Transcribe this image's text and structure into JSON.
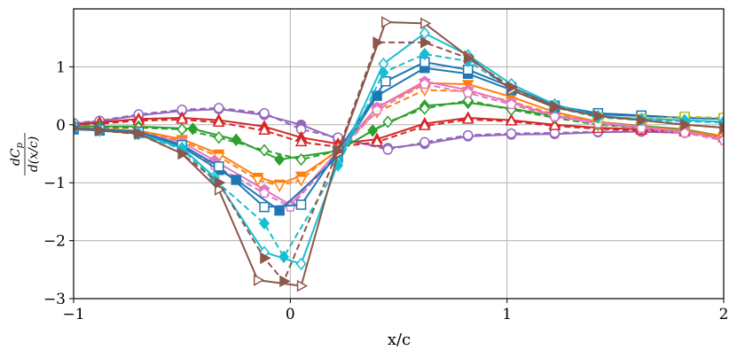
{
  "chart_data": {
    "type": "line",
    "xlabel": "x/c",
    "ylabel": {
      "numerator": "dC",
      "numerator_sub": "p",
      "denominator": "d(x/c)"
    },
    "xlim": [
      -1,
      2
    ],
    "ylim": [
      -3,
      2
    ],
    "xticks": [
      {
        "value": -1,
        "label": "−1"
      },
      {
        "value": 0,
        "label": "0"
      },
      {
        "value": 1,
        "label": "1"
      },
      {
        "value": 2,
        "label": "2"
      }
    ],
    "yticks": [
      {
        "value": -3,
        "label": "−3"
      },
      {
        "value": -2,
        "label": "−2"
      },
      {
        "value": -1,
        "label": "−1"
      },
      {
        "value": 0,
        "label": "0"
      },
      {
        "value": 1,
        "label": "1"
      }
    ],
    "grid": true,
    "series": [
      {
        "color": "#9467bd",
        "dash": false,
        "marker": "circle-filled",
        "x": [
          -1.0,
          -0.88,
          -0.7,
          -0.5,
          -0.33,
          -0.12,
          0.05,
          0.22,
          0.45,
          0.62,
          0.82,
          1.02,
          1.22,
          1.42,
          1.62,
          1.82,
          2.0
        ],
        "y": [
          0.02,
          0.06,
          0.16,
          0.24,
          0.27,
          0.17,
          0.0,
          -0.25,
          -0.4,
          -0.33,
          -0.2,
          -0.17,
          -0.16,
          -0.13,
          -0.12,
          -0.14,
          -0.2
        ]
      },
      {
        "color": "#9467bd",
        "dash": true,
        "marker": "circle-open",
        "x": [
          -1.0,
          -0.88,
          -0.7,
          -0.5,
          -0.33,
          -0.12,
          0.05,
          0.22,
          0.45,
          0.62,
          0.82,
          1.02,
          1.22,
          1.42,
          1.62,
          1.82,
          2.0
        ],
        "y": [
          0.03,
          0.07,
          0.18,
          0.26,
          0.29,
          0.2,
          -0.08,
          -0.22,
          -0.43,
          -0.3,
          -0.18,
          -0.15,
          -0.14,
          -0.12,
          -0.11,
          -0.13,
          -0.18
        ]
      },
      {
        "color": "#d62728",
        "dash": false,
        "marker": "triangle-up-filled",
        "x": [
          -1.0,
          -0.88,
          -0.7,
          -0.5,
          -0.33,
          -0.12,
          0.05,
          0.22,
          0.4,
          0.62,
          0.82,
          1.02,
          1.22,
          1.42,
          1.62,
          1.82,
          2.0
        ],
        "y": [
          0.0,
          0.04,
          0.1,
          0.12,
          0.08,
          -0.03,
          -0.22,
          -0.33,
          -0.25,
          0.02,
          0.12,
          0.08,
          0.0,
          -0.05,
          -0.08,
          -0.1,
          -0.2
        ]
      },
      {
        "color": "#d62728",
        "dash": true,
        "marker": "triangle-up-open",
        "x": [
          -1.0,
          -0.88,
          -0.7,
          -0.5,
          -0.33,
          -0.12,
          0.05,
          0.22,
          0.4,
          0.62,
          0.82,
          1.02,
          1.22,
          1.42,
          1.62,
          1.82,
          2.0
        ],
        "y": [
          0.0,
          0.02,
          0.07,
          0.09,
          0.04,
          -0.1,
          -0.3,
          -0.38,
          -0.3,
          -0.02,
          0.09,
          0.06,
          -0.02,
          -0.07,
          -0.1,
          -0.13,
          -0.23
        ]
      },
      {
        "color": "#2ca02c",
        "dash": false,
        "marker": "diamond-filled",
        "x": [
          -1.0,
          -0.88,
          -0.7,
          -0.45,
          -0.25,
          -0.05,
          0.22,
          0.38,
          0.62,
          0.82,
          1.02,
          1.22,
          1.42,
          1.62,
          1.82,
          2.0
        ],
        "y": [
          -0.02,
          -0.03,
          -0.03,
          -0.07,
          -0.26,
          -0.6,
          -0.45,
          -0.1,
          0.33,
          0.38,
          0.28,
          0.15,
          0.05,
          -0.02,
          -0.08,
          -0.2
        ]
      },
      {
        "color": "#2ca02c",
        "dash": true,
        "marker": "diamond-open",
        "x": [
          -1.0,
          -0.88,
          -0.7,
          -0.5,
          -0.33,
          -0.12,
          0.05,
          0.22,
          0.45,
          0.62,
          0.82,
          1.02,
          1.22,
          1.42,
          1.62,
          1.82,
          2.0
        ],
        "y": [
          -0.03,
          -0.05,
          -0.05,
          -0.08,
          -0.22,
          -0.44,
          -0.6,
          -0.45,
          0.05,
          0.28,
          0.42,
          0.26,
          0.12,
          0.0,
          -0.05,
          -0.1,
          -0.22
        ]
      },
      {
        "color": "#ff7f0e",
        "dash": false,
        "marker": "triangle-down-filled",
        "x": [
          -1.0,
          -0.88,
          -0.7,
          -0.5,
          -0.33,
          -0.15,
          -0.05,
          0.05,
          0.22,
          0.4,
          0.62,
          0.82,
          1.02,
          1.22,
          1.42,
          1.62,
          1.82,
          2.0
        ],
        "y": [
          -0.05,
          -0.07,
          -0.1,
          -0.25,
          -0.5,
          -0.9,
          -1.02,
          -0.88,
          -0.45,
          0.3,
          0.72,
          0.7,
          0.48,
          0.22,
          0.05,
          -0.03,
          -0.1,
          -0.2
        ]
      },
      {
        "color": "#ff7f0e",
        "dash": true,
        "marker": "triangle-down-open",
        "x": [
          -1.0,
          -0.88,
          -0.7,
          -0.5,
          -0.33,
          -0.15,
          -0.05,
          0.05,
          0.22,
          0.4,
          0.62,
          0.82,
          1.02,
          1.22,
          1.42,
          1.62,
          1.82,
          2.0
        ],
        "y": [
          -0.06,
          -0.08,
          -0.12,
          -0.28,
          -0.55,
          -0.95,
          -1.05,
          -0.95,
          -0.42,
          0.22,
          0.6,
          0.58,
          0.4,
          0.18,
          0.04,
          -0.04,
          -0.12,
          -0.22
        ]
      },
      {
        "color": "#e377c2",
        "dash": false,
        "marker": "pentagon-filled",
        "x": [
          -1.0,
          -0.88,
          -0.7,
          -0.5,
          -0.35,
          -0.12,
          0.0,
          0.22,
          0.4,
          0.62,
          0.82,
          1.02,
          1.22,
          1.42,
          1.62,
          1.82,
          2.0
        ],
        "y": [
          -0.04,
          -0.08,
          -0.13,
          -0.3,
          -0.62,
          -1.12,
          -1.38,
          -0.45,
          0.3,
          0.75,
          0.6,
          0.38,
          0.16,
          0.04,
          -0.04,
          -0.12,
          -0.25
        ]
      },
      {
        "color": "#e377c2",
        "dash": true,
        "marker": "pentagon-open",
        "x": [
          -1.0,
          -0.88,
          -0.7,
          -0.5,
          -0.35,
          -0.12,
          0.0,
          0.22,
          0.4,
          0.62,
          0.82,
          1.02,
          1.22,
          1.42,
          1.62,
          1.82,
          2.0
        ],
        "y": [
          -0.05,
          -0.09,
          -0.15,
          -0.34,
          -0.7,
          -1.18,
          -1.42,
          -0.5,
          0.25,
          0.7,
          0.55,
          0.35,
          0.14,
          0.02,
          -0.06,
          -0.14,
          -0.27
        ]
      },
      {
        "color": "#1f77b4",
        "dash": false,
        "marker": "square-filled",
        "x": [
          -1.0,
          -0.88,
          -0.7,
          -0.5,
          -0.33,
          -0.25,
          -0.05,
          0.22,
          0.4,
          0.62,
          0.82,
          1.02,
          1.22,
          1.42,
          1.62,
          1.82,
          2.0
        ],
        "y": [
          -0.08,
          -0.1,
          -0.14,
          -0.38,
          -0.78,
          -0.95,
          -1.48,
          -0.55,
          0.5,
          0.98,
          0.88,
          0.6,
          0.3,
          0.18,
          0.15,
          0.12,
          0.1
        ]
      },
      {
        "color": "#1f77b4",
        "dash": false,
        "marker": "square-open",
        "x": [
          -1.0,
          -0.88,
          -0.7,
          -0.5,
          -0.33,
          -0.12,
          0.05,
          0.22,
          0.44,
          0.62,
          0.82,
          1.02,
          1.22,
          1.42,
          1.62,
          1.82,
          2.0
        ],
        "y": [
          -0.05,
          -0.08,
          -0.12,
          -0.35,
          -0.72,
          -1.42,
          -1.38,
          -0.45,
          0.75,
          1.08,
          0.95,
          0.65,
          0.33,
          0.2,
          0.16,
          0.12,
          0.1
        ]
      },
      {
        "color": "#bcbd22",
        "dash": true,
        "marker": "square-open",
        "x": [
          1.42,
          1.62,
          1.82,
          2.0
        ],
        "y": [
          0.12,
          0.1,
          0.14,
          0.12
        ]
      },
      {
        "color": "#17becf",
        "dash": false,
        "marker": "diamond-open",
        "x": [
          -1.0,
          -0.88,
          -0.7,
          -0.5,
          -0.35,
          -0.12,
          0.05,
          0.22,
          0.43,
          0.62,
          0.82,
          1.02,
          1.22,
          1.42,
          1.62,
          1.82,
          2.0
        ],
        "y": [
          -0.05,
          -0.1,
          -0.15,
          -0.4,
          -0.9,
          -2.2,
          -2.4,
          -0.65,
          1.05,
          1.58,
          1.2,
          0.7,
          0.35,
          0.15,
          0.1,
          0.08,
          0.05
        ]
      },
      {
        "color": "#17becf",
        "dash": true,
        "marker": "diamond-filled",
        "x": [
          -1.0,
          -0.88,
          -0.7,
          -0.5,
          -0.35,
          -0.12,
          -0.03,
          0.22,
          0.43,
          0.62,
          0.82,
          1.02,
          1.22,
          1.42,
          1.62,
          1.82,
          2.0
        ],
        "y": [
          -0.06,
          -0.1,
          -0.16,
          -0.42,
          -0.95,
          -1.7,
          -2.28,
          -0.7,
          0.9,
          1.22,
          1.1,
          0.62,
          0.3,
          0.13,
          0.08,
          0.06,
          0.04
        ]
      },
      {
        "color": "#8c564b",
        "dash": false,
        "marker": "triangle-right-open",
        "x": [
          -1.0,
          -0.88,
          -0.7,
          -0.5,
          -0.33,
          -0.15,
          0.05,
          0.22,
          0.44,
          0.62,
          0.82,
          1.02,
          1.22,
          1.42,
          1.62,
          1.82,
          2.0
        ],
        "y": [
          -0.05,
          -0.1,
          -0.15,
          -0.5,
          -1.12,
          -2.68,
          -2.78,
          -0.5,
          1.77,
          1.75,
          1.18,
          0.6,
          0.3,
          0.15,
          0.08,
          0.0,
          -0.05
        ]
      },
      {
        "color": "#8c564b",
        "dash": true,
        "marker": "triangle-right-filled",
        "x": [
          -1.0,
          -0.88,
          -0.7,
          -0.5,
          -0.33,
          -0.12,
          -0.03,
          0.22,
          0.4,
          0.62,
          0.82,
          1.02,
          1.22,
          1.42,
          1.62,
          1.82,
          2.0
        ],
        "y": [
          -0.06,
          -0.1,
          -0.16,
          -0.5,
          -1.0,
          -2.3,
          -2.7,
          -0.45,
          1.42,
          1.42,
          1.15,
          0.65,
          0.32,
          0.15,
          0.08,
          0.0,
          -0.05
        ]
      }
    ]
  }
}
